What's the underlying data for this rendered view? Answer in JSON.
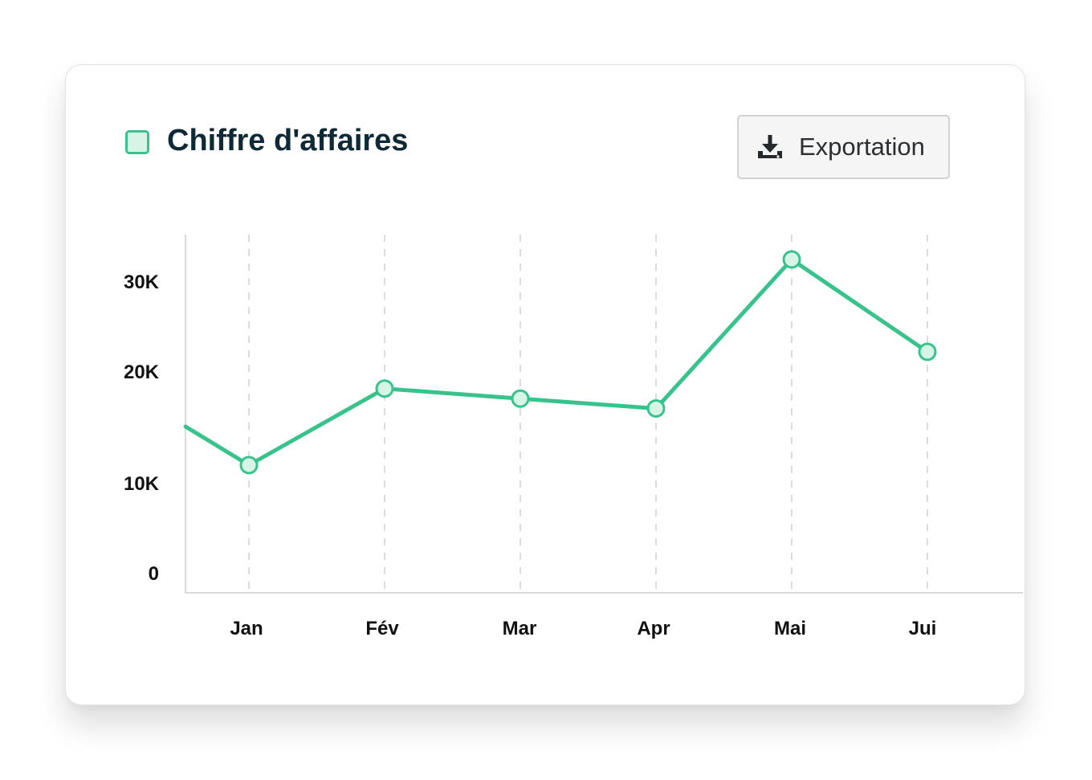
{
  "legend": {
    "label": "Chiffre d'affaires",
    "swatch_color": "#39c38c"
  },
  "export_button": {
    "label": "Exportation",
    "icon": "download-icon"
  },
  "chart_data": {
    "type": "line",
    "categories": [
      "Jan",
      "Fév",
      "Mar",
      "Apr",
      "Mai",
      "Jui"
    ],
    "series": [
      {
        "name": "Chiffre d'affaires",
        "values": [
          11800,
          19500,
          18500,
          17500,
          32500,
          23200
        ],
        "color": "#39c38c"
      }
    ],
    "y_ticks": [
      "0",
      "10K",
      "20K",
      "30K"
    ],
    "grid": "vertical-dashed",
    "legend_position": "top-left"
  }
}
